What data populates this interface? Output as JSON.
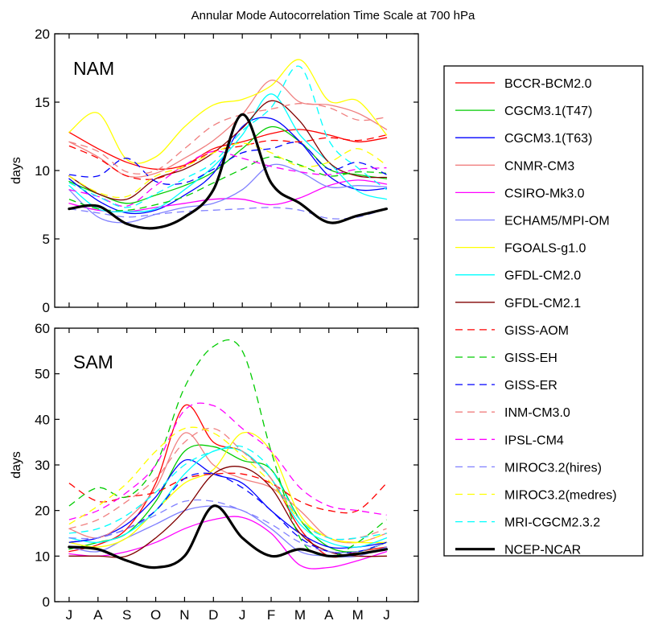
{
  "chart_data": [
    {
      "type": "line",
      "title": "Annular Mode Autocorrelation Time Scale at 700 hPa",
      "panel_label": "NAM",
      "xlabel": "",
      "ylabel": "days",
      "ylim": [
        0,
        20
      ],
      "yticks": [
        0,
        5,
        10,
        15,
        20
      ],
      "categories": [
        "J",
        "A",
        "S",
        "O",
        "N",
        "D",
        "J",
        "F",
        "M",
        "A",
        "M",
        "J"
      ],
      "grid": false,
      "series": [
        {
          "name": "BCCR-BCM2.0",
          "color": "#ff0000",
          "dash": "solid",
          "width": 1.3,
          "values": [
            12.8,
            11.6,
            10.6,
            10.1,
            10.4,
            11.6,
            12.1,
            12.7,
            13.0,
            12.6,
            12.1,
            12.4
          ]
        },
        {
          "name": "CGCM3.1(T47)",
          "color": "#00cc00",
          "dash": "solid",
          "width": 1.3,
          "values": [
            9.2,
            8.3,
            7.6,
            8.2,
            8.9,
            9.9,
            11.6,
            13.2,
            12.1,
            10.1,
            9.7,
            9.4
          ]
        },
        {
          "name": "CGCM3.1(T63)",
          "color": "#0000ff",
          "dash": "solid",
          "width": 1.3,
          "values": [
            9.4,
            7.8,
            6.9,
            7.1,
            8.2,
            9.8,
            13.2,
            13.8,
            12.1,
            9.6,
            8.6,
            8.7
          ]
        },
        {
          "name": "CNMR-CM3",
          "color": "#f08080",
          "dash": "solid",
          "width": 1.3,
          "values": [
            12.1,
            11.0,
            9.6,
            9.8,
            10.9,
            12.2,
            14.1,
            16.6,
            15.0,
            14.8,
            14.2,
            13.0
          ]
        },
        {
          "name": "CSIRO-Mk3.0",
          "color": "#ff00ff",
          "dash": "solid",
          "width": 1.3,
          "values": [
            7.6,
            7.1,
            7.0,
            7.3,
            7.6,
            7.9,
            7.9,
            7.5,
            8.0,
            8.9,
            9.3,
            9.0
          ]
        },
        {
          "name": "ECHAM5/MPI-OM",
          "color": "#8080ff",
          "dash": "solid",
          "width": 1.3,
          "values": [
            8.6,
            6.6,
            6.2,
            6.8,
            7.3,
            7.6,
            8.6,
            10.4,
            9.9,
            8.8,
            8.9,
            8.8
          ]
        },
        {
          "name": "FGOALS-g1.0",
          "color": "#ffff00",
          "dash": "solid",
          "width": 1.3,
          "values": [
            12.8,
            14.2,
            10.8,
            11.0,
            13.2,
            14.8,
            15.2,
            16.2,
            18.1,
            15.1,
            15.1,
            12.6
          ]
        },
        {
          "name": "GFDL-CM2.0",
          "color": "#00ffff",
          "dash": "solid",
          "width": 1.3,
          "values": [
            8.9,
            7.2,
            7.0,
            7.2,
            8.6,
            10.3,
            12.6,
            15.6,
            12.6,
            10.6,
            8.5,
            7.9
          ]
        },
        {
          "name": "GFDL-CM2.1",
          "color": "#800000",
          "dash": "solid",
          "width": 1.3,
          "values": [
            9.6,
            8.3,
            7.9,
            9.4,
            10.1,
            11.3,
            13.1,
            15.1,
            13.6,
            10.6,
            9.6,
            9.5
          ]
        },
        {
          "name": "GISS-AOM",
          "color": "#ff0000",
          "dash": "dashed",
          "width": 1.3,
          "values": [
            11.8,
            10.9,
            9.6,
            9.4,
            10.3,
            11.4,
            11.8,
            12.2,
            12.1,
            12.4,
            12.2,
            12.6
          ]
        },
        {
          "name": "GISS-EH",
          "color": "#00cc00",
          "dash": "dashed",
          "width": 1.3,
          "values": [
            7.9,
            7.2,
            7.1,
            7.5,
            8.1,
            9.1,
            10.1,
            11.0,
            10.4,
            9.6,
            9.9,
            9.8
          ]
        },
        {
          "name": "GISS-ER",
          "color": "#0000ff",
          "dash": "dashed",
          "width": 1.3,
          "values": [
            9.7,
            9.6,
            10.9,
            9.2,
            9.1,
            10.1,
            11.3,
            11.6,
            12.0,
            10.1,
            10.6,
            9.7
          ]
        },
        {
          "name": "INM-CM3.0",
          "color": "#f08080",
          "dash": "dashed",
          "width": 1.3,
          "values": [
            12.1,
            11.4,
            9.9,
            10.0,
            11.6,
            13.3,
            14.1,
            14.5,
            14.9,
            14.6,
            13.7,
            13.9
          ]
        },
        {
          "name": "IPSL-CM4",
          "color": "#ff00ff",
          "dash": "dashed",
          "width": 1.3,
          "values": [
            8.6,
            8.1,
            7.4,
            8.9,
            10.4,
            11.4,
            10.9,
            10.3,
            9.9,
            9.7,
            10.1,
            10.2
          ]
        },
        {
          "name": "MIROC3.2(hires)",
          "color": "#8080ff",
          "dash": "dashed",
          "width": 1.3,
          "values": [
            7.2,
            6.9,
            6.6,
            6.8,
            7.0,
            7.1,
            7.2,
            7.3,
            7.1,
            6.5,
            6.6,
            7.2
          ]
        },
        {
          "name": "MIROC3.2(medres)",
          "color": "#ffff00",
          "dash": "dashed",
          "width": 1.3,
          "values": [
            9.6,
            8.4,
            8.1,
            9.6,
            10.3,
            11.3,
            12.0,
            11.3,
            10.3,
            10.6,
            11.6,
            10.4
          ]
        },
        {
          "name": "MRI-CGCM2.3.2",
          "color": "#00ffff",
          "dash": "dashed",
          "width": 1.3,
          "values": [
            9.1,
            8.1,
            7.3,
            8.3,
            9.4,
            10.6,
            12.9,
            14.6,
            17.6,
            12.2,
            10.2,
            8.6
          ]
        },
        {
          "name": "NCEP-NCAR",
          "color": "#000000",
          "dash": "solid",
          "width": 3.2,
          "values": [
            7.2,
            7.4,
            6.1,
            5.8,
            6.6,
            8.6,
            14.1,
            9.1,
            7.6,
            6.2,
            6.7,
            7.2
          ]
        }
      ]
    },
    {
      "type": "line",
      "panel_label": "SAM",
      "xlabel": "",
      "ylabel": "days",
      "ylim": [
        0,
        60
      ],
      "yticks": [
        0,
        10,
        20,
        30,
        40,
        50,
        60
      ],
      "categories": [
        "J",
        "A",
        "S",
        "O",
        "N",
        "D",
        "J",
        "F",
        "M",
        "A",
        "M",
        "J"
      ],
      "grid": false,
      "series": [
        {
          "name": "BCCR-BCM2.0",
          "color": "#ff0000",
          "dash": "solid",
          "width": 1.3,
          "values": [
            11.0,
            12.5,
            16.0,
            26.0,
            43.0,
            35.0,
            33.0,
            27.0,
            16.0,
            10.0,
            11.0,
            12.0
          ]
        },
        {
          "name": "CGCM3.1(T47)",
          "color": "#00cc00",
          "dash": "solid",
          "width": 1.3,
          "values": [
            11.5,
            13.0,
            15.0,
            22.0,
            33.0,
            34.0,
            31.0,
            29.0,
            18.0,
            12.0,
            11.0,
            13.0
          ]
        },
        {
          "name": "CGCM3.1(T63)",
          "color": "#0000ff",
          "dash": "solid",
          "width": 1.3,
          "values": [
            13.0,
            14.0,
            17.0,
            23.0,
            31.0,
            28.0,
            26.0,
            20.0,
            15.0,
            12.0,
            12.0,
            13.0
          ]
        },
        {
          "name": "CNMR-CM3",
          "color": "#f08080",
          "dash": "solid",
          "width": 1.3,
          "values": [
            16.0,
            14.0,
            18.0,
            25.0,
            37.0,
            30.0,
            27.0,
            25.0,
            20.0,
            14.0,
            13.0,
            15.0
          ]
        },
        {
          "name": "CSIRO-Mk3.0",
          "color": "#ff00ff",
          "dash": "solid",
          "width": 1.3,
          "values": [
            10.5,
            10.0,
            11.0,
            13.0,
            16.0,
            18.0,
            18.5,
            15.0,
            8.0,
            7.5,
            9.0,
            11.0
          ]
        },
        {
          "name": "ECHAM5/MPI-OM",
          "color": "#8080ff",
          "dash": "solid",
          "width": 1.3,
          "values": [
            12.0,
            11.0,
            14.0,
            17.0,
            20.0,
            21.0,
            20.0,
            16.0,
            11.0,
            10.0,
            10.0,
            12.0
          ]
        },
        {
          "name": "FGOALS-g1.0",
          "color": "#ffff00",
          "dash": "solid",
          "width": 1.3,
          "values": [
            13.0,
            12.0,
            14.0,
            20.0,
            26.0,
            29.0,
            37.0,
            33.0,
            19.0,
            14.0,
            13.0,
            13.0
          ]
        },
        {
          "name": "GFDL-CM2.0",
          "color": "#00ffff",
          "dash": "solid",
          "width": 1.3,
          "values": [
            14.0,
            13.0,
            15.0,
            20.0,
            28.0,
            33.0,
            33.0,
            27.0,
            17.0,
            13.0,
            12.0,
            14.0
          ]
        },
        {
          "name": "GFDL-CM2.1",
          "color": "#800000",
          "dash": "solid",
          "width": 1.3,
          "values": [
            10.0,
            10.0,
            10.0,
            14.0,
            20.0,
            28.0,
            29.5,
            25.0,
            15.0,
            11.0,
            10.0,
            10.0
          ]
        },
        {
          "name": "GISS-AOM",
          "color": "#ff0000",
          "dash": "dashed",
          "width": 1.3,
          "values": [
            26.0,
            22.0,
            23.0,
            24.0,
            27.0,
            28.0,
            28.0,
            26.0,
            22.0,
            20.0,
            20.0,
            26.0
          ]
        },
        {
          "name": "GISS-EH",
          "color": "#00cc00",
          "dash": "dashed",
          "width": 1.3,
          "values": [
            21.0,
            25.0,
            23.0,
            30.0,
            47.0,
            56.0,
            55.0,
            33.0,
            14.0,
            10.0,
            13.0,
            18.0
          ]
        },
        {
          "name": "GISS-ER",
          "color": "#0000ff",
          "dash": "dashed",
          "width": 1.3,
          "values": [
            13.0,
            14.0,
            16.0,
            20.0,
            27.0,
            28.0,
            25.0,
            20.0,
            14.0,
            11.0,
            11.0,
            13.0
          ]
        },
        {
          "name": "INM-CM3.0",
          "color": "#f08080",
          "dash": "dashed",
          "width": 1.3,
          "values": [
            16.0,
            18.0,
            22.0,
            27.0,
            35.0,
            38.0,
            33.0,
            27.0,
            18.0,
            14.0,
            14.0,
            16.0
          ]
        },
        {
          "name": "IPSL-CM4",
          "color": "#ff00ff",
          "dash": "dashed",
          "width": 1.3,
          "values": [
            18.0,
            20.0,
            24.0,
            30.0,
            42.0,
            43.0,
            38.0,
            33.0,
            25.0,
            21.0,
            20.0,
            19.0
          ]
        },
        {
          "name": "MIROC3.2(hires)",
          "color": "#8080ff",
          "dash": "dashed",
          "width": 1.3,
          "values": [
            14.0,
            14.0,
            16.0,
            19.0,
            22.0,
            22.0,
            20.0,
            17.0,
            13.0,
            11.0,
            11.0,
            13.0
          ]
        },
        {
          "name": "MIROC3.2(medres)",
          "color": "#ffff00",
          "dash": "dashed",
          "width": 1.3,
          "values": [
            17.0,
            21.0,
            26.0,
            33.0,
            38.0,
            37.0,
            32.0,
            26.0,
            18.0,
            14.0,
            13.0,
            15.0
          ]
        },
        {
          "name": "MRI-CGCM2.3.2",
          "color": "#00ffff",
          "dash": "dashed",
          "width": 1.3,
          "values": [
            15.0,
            16.0,
            19.0,
            24.0,
            30.0,
            33.0,
            34.0,
            29.0,
            18.0,
            14.0,
            14.0,
            15.0
          ]
        },
        {
          "name": "NCEP-NCAR",
          "color": "#000000",
          "dash": "solid",
          "width": 3.2,
          "values": [
            12.0,
            11.5,
            9.0,
            7.5,
            10.0,
            21.0,
            14.0,
            10.0,
            11.5,
            10.0,
            10.5,
            11.5
          ]
        }
      ]
    }
  ]
}
